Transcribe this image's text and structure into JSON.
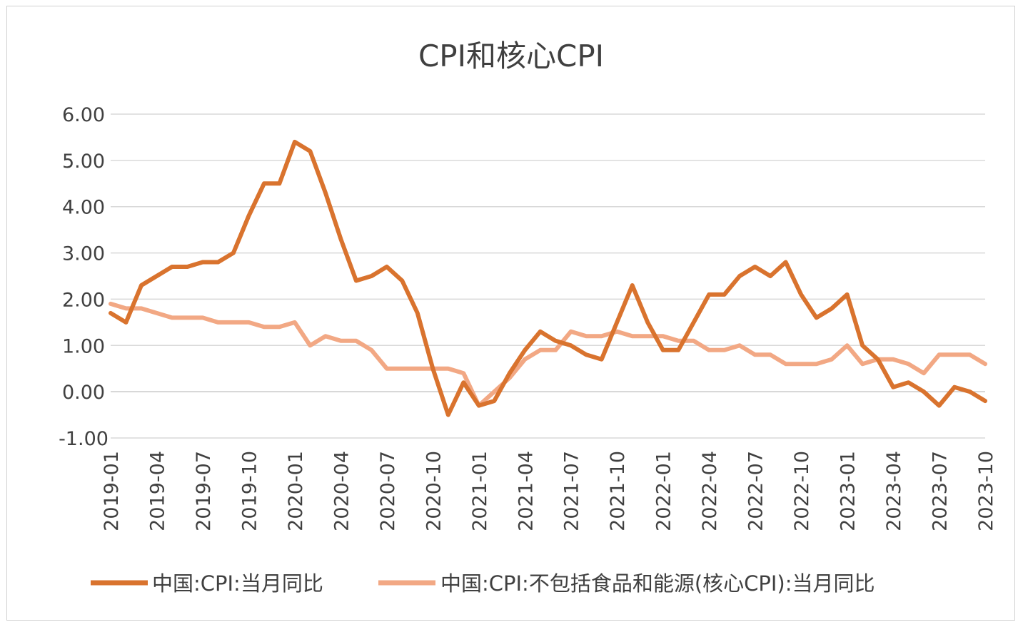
{
  "chart_data": {
    "type": "line",
    "title": "CPI和核心CPI",
    "xlabel": "",
    "ylabel": "",
    "ylim": [
      -1,
      6
    ],
    "yticks": [
      "6.00",
      "5.00",
      "4.00",
      "3.00",
      "2.00",
      "1.00",
      "0.00",
      "-1.00"
    ],
    "grid": true,
    "legend_position": "bottom",
    "x": [
      "2019-01",
      "2019-02",
      "2019-03",
      "2019-04",
      "2019-05",
      "2019-06",
      "2019-07",
      "2019-08",
      "2019-09",
      "2019-10",
      "2019-11",
      "2019-12",
      "2020-01",
      "2020-02",
      "2020-03",
      "2020-04",
      "2020-05",
      "2020-06",
      "2020-07",
      "2020-08",
      "2020-09",
      "2020-10",
      "2020-11",
      "2020-12",
      "2021-01",
      "2021-02",
      "2021-03",
      "2021-04",
      "2021-05",
      "2021-06",
      "2021-07",
      "2021-08",
      "2021-09",
      "2021-10",
      "2021-11",
      "2021-12",
      "2022-01",
      "2022-02",
      "2022-03",
      "2022-04",
      "2022-05",
      "2022-06",
      "2022-07",
      "2022-08",
      "2022-09",
      "2022-10",
      "2022-11",
      "2022-12",
      "2023-01",
      "2023-02",
      "2023-03",
      "2023-04",
      "2023-05",
      "2023-06",
      "2023-07",
      "2023-08",
      "2023-09",
      "2023-10"
    ],
    "xtick_labels": [
      "2019-01",
      "2019-04",
      "2019-07",
      "2019-10",
      "2020-01",
      "2020-04",
      "2020-07",
      "2020-10",
      "2021-01",
      "2021-04",
      "2021-07",
      "2021-10",
      "2022-01",
      "2022-04",
      "2022-07",
      "2022-10",
      "2023-01",
      "2023-04",
      "2023-07",
      "2023-10"
    ],
    "series": [
      {
        "name": "中国:CPI:当月同比",
        "color": "#D9732E",
        "values": [
          1.7,
          1.5,
          2.3,
          2.5,
          2.7,
          2.7,
          2.8,
          2.8,
          3.0,
          3.8,
          4.5,
          4.5,
          5.4,
          5.2,
          4.3,
          3.3,
          2.4,
          2.5,
          2.7,
          2.4,
          1.7,
          0.5,
          -0.5,
          0.2,
          -0.3,
          -0.2,
          0.4,
          0.9,
          1.3,
          1.1,
          1.0,
          0.8,
          0.7,
          1.5,
          2.3,
          1.5,
          0.9,
          0.9,
          1.5,
          2.1,
          2.1,
          2.5,
          2.7,
          2.5,
          2.8,
          2.1,
          1.6,
          1.8,
          2.1,
          1.0,
          0.7,
          0.1,
          0.2,
          0.0,
          -0.3,
          0.1,
          0.0,
          -0.2
        ]
      },
      {
        "name": "中国:CPI:不包括食品和能源(核心CPI):当月同比",
        "color": "#F2A884",
        "values": [
          1.9,
          1.8,
          1.8,
          1.7,
          1.6,
          1.6,
          1.6,
          1.5,
          1.5,
          1.5,
          1.4,
          1.4,
          1.5,
          1.0,
          1.2,
          1.1,
          1.1,
          0.9,
          0.5,
          0.5,
          0.5,
          0.5,
          0.5,
          0.4,
          -0.3,
          0.0,
          0.3,
          0.7,
          0.9,
          0.9,
          1.3,
          1.2,
          1.2,
          1.3,
          1.2,
          1.2,
          1.2,
          1.1,
          1.1,
          0.9,
          0.9,
          1.0,
          0.8,
          0.8,
          0.6,
          0.6,
          0.6,
          0.7,
          1.0,
          0.6,
          0.7,
          0.7,
          0.6,
          0.4,
          0.8,
          0.8,
          0.8,
          0.6
        ]
      }
    ]
  }
}
